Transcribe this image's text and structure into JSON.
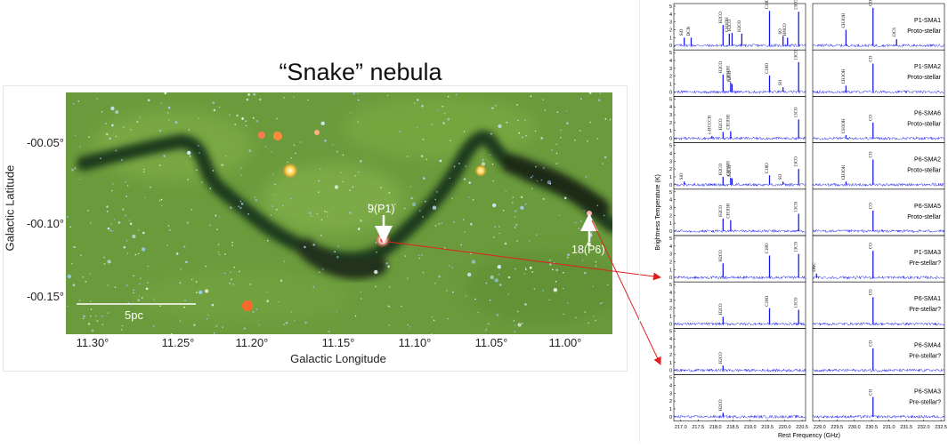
{
  "image": {
    "title": "“Snake” nebula",
    "ylabel": "Galactic Latitude",
    "xlabel": "Galactic Longitude",
    "yticks": [
      "-00.05°",
      "-00.10°",
      "-00.15°"
    ],
    "xticks": [
      "11.30°",
      "11.25°",
      "11.20°",
      "11.15°",
      "11.10°",
      "11.05°",
      "11.00°"
    ],
    "scale_bar": "5pc",
    "annotations": [
      "9(P1)",
      "18(P6)"
    ]
  },
  "chart_data": {
    "type": "line",
    "ylabel": "Brightness Temperature (K)",
    "xlabel": "Rest Frequency (GHz)",
    "x_axis_left": {
      "ticks": [
        "217.0",
        "217.5",
        "218.0",
        "218.5",
        "219.0",
        "219.5",
        "220.0",
        "220.5"
      ],
      "range": [
        216.8,
        220.6
      ]
    },
    "x_axis_right": {
      "ticks": [
        "229.0",
        "229.5",
        "230.0",
        "230.5",
        "231.0",
        "231.5",
        "232.0",
        "232.5"
      ],
      "range": [
        228.8,
        232.6
      ]
    },
    "y_range": [
      0,
      5
    ],
    "y_ticks": [
      "0",
      "1",
      "2",
      "3",
      "4",
      "5"
    ],
    "series_color": "#1a1aee",
    "panels": [
      {
        "name": "P1-SMA1",
        "class": "Proto-stellar",
        "lines": [
          {
            "side": "L",
            "x": 217.1,
            "h": 1.0,
            "label": "SiO"
          },
          {
            "side": "L",
            "x": 217.3,
            "h": 1.0,
            "label": "DCN"
          },
          {
            "side": "L",
            "x": 218.22,
            "h": 2.6,
            "label": "H2CO"
          },
          {
            "side": "L",
            "x": 218.4,
            "h": 1.5,
            "label": "CH3OH"
          },
          {
            "side": "L",
            "x": 218.48,
            "h": 1.6,
            "label": "H2CO"
          },
          {
            "side": "L",
            "x": 218.76,
            "h": 1.5,
            "label": "H2CO"
          },
          {
            "side": "L",
            "x": 219.56,
            "h": 4.4,
            "label": "C18O"
          },
          {
            "side": "L",
            "x": 219.95,
            "h": 1.2,
            "label": "SO"
          },
          {
            "side": "L",
            "x": 220.08,
            "h": 1.0,
            "label": "HNCO"
          },
          {
            "side": "L",
            "x": 220.4,
            "h": 4.3,
            "label": "13CO"
          },
          {
            "side": "R",
            "x": 229.76,
            "h": 2.0,
            "label": "CH3OH"
          },
          {
            "side": "R",
            "x": 230.54,
            "h": 4.8,
            "label": "CO"
          },
          {
            "side": "R",
            "x": 231.22,
            "h": 0.8,
            "label": "13CS"
          }
        ]
      },
      {
        "name": "P1-SMA2",
        "class": "Proto-stellar",
        "lines": [
          {
            "side": "L",
            "x": 218.22,
            "h": 2.2,
            "label": "H2CO"
          },
          {
            "side": "L",
            "x": 218.44,
            "h": 1.2,
            "label": "CH3OH"
          },
          {
            "side": "L",
            "x": 218.48,
            "h": 1.0,
            "label": "H2CO"
          },
          {
            "side": "L",
            "x": 219.56,
            "h": 2.1,
            "label": "C18O"
          },
          {
            "side": "L",
            "x": 219.95,
            "h": 0.6,
            "label": "SO"
          },
          {
            "side": "L",
            "x": 220.4,
            "h": 3.8,
            "label": "13CO"
          },
          {
            "side": "R",
            "x": 229.76,
            "h": 0.8,
            "label": "CH3OH"
          },
          {
            "side": "R",
            "x": 230.54,
            "h": 3.6,
            "label": "CO"
          }
        ]
      },
      {
        "name": "P6-SMA6",
        "class": "Proto-stellar",
        "lines": [
          {
            "side": "L",
            "x": 217.9,
            "h": 0.3,
            "label": "c-HCCCH"
          },
          {
            "side": "L",
            "x": 218.22,
            "h": 0.8,
            "label": "H2CO"
          },
          {
            "side": "L",
            "x": 218.44,
            "h": 0.9,
            "label": "CH3OH"
          },
          {
            "side": "L",
            "x": 220.4,
            "h": 2.4,
            "label": "13CO"
          },
          {
            "side": "R",
            "x": 229.76,
            "h": 0.4,
            "label": "CH3OH"
          },
          {
            "side": "R",
            "x": 230.54,
            "h": 2.0,
            "label": "CO"
          }
        ]
      },
      {
        "name": "P6-SMA2",
        "class": "Proto-stellar",
        "lines": [
          {
            "side": "L",
            "x": 217.1,
            "h": 0.4,
            "label": "SiO"
          },
          {
            "side": "L",
            "x": 218.22,
            "h": 1.0,
            "label": "H2CO"
          },
          {
            "side": "L",
            "x": 218.44,
            "h": 0.9,
            "label": "CH3OH"
          },
          {
            "side": "L",
            "x": 218.48,
            "h": 0.8,
            "label": "H2CO"
          },
          {
            "side": "L",
            "x": 219.56,
            "h": 1.2,
            "label": "C18O"
          },
          {
            "side": "L",
            "x": 219.95,
            "h": 0.4,
            "label": "SO"
          },
          {
            "side": "L",
            "x": 220.4,
            "h": 2.0,
            "label": "13CO"
          },
          {
            "side": "R",
            "x": 229.76,
            "h": 0.4,
            "label": "CH3OH"
          },
          {
            "side": "R",
            "x": 230.54,
            "h": 3.2,
            "label": "CO"
          }
        ]
      },
      {
        "name": "P6-SMA5",
        "class": "Proto-stellar",
        "lines": [
          {
            "side": "L",
            "x": 218.22,
            "h": 1.6,
            "label": "H2CO"
          },
          {
            "side": "L",
            "x": 218.44,
            "h": 1.4,
            "label": "CH3OH"
          },
          {
            "side": "L",
            "x": 220.4,
            "h": 2.2,
            "label": "13CO"
          },
          {
            "side": "R",
            "x": 230.54,
            "h": 2.6,
            "label": "CO"
          }
        ]
      },
      {
        "name": "P1-SMA3",
        "class": "Pre-stellar?",
        "lines": [
          {
            "side": "L",
            "x": 218.22,
            "h": 1.8,
            "label": "H2CO"
          },
          {
            "side": "L",
            "x": 219.56,
            "h": 2.8,
            "label": "C18O"
          },
          {
            "side": "L",
            "x": 220.4,
            "h": 3.0,
            "label": "13CO"
          },
          {
            "side": "R",
            "x": 228.91,
            "h": 0.5,
            "label": "DNC"
          },
          {
            "side": "R",
            "x": 230.54,
            "h": 3.4,
            "label": "CO"
          }
        ]
      },
      {
        "name": "P6-SMA1",
        "class": "Pre-stellar?",
        "lines": [
          {
            "side": "L",
            "x": 218.22,
            "h": 0.9,
            "label": "H2CO"
          },
          {
            "side": "L",
            "x": 219.56,
            "h": 2.0,
            "label": "C18O"
          },
          {
            "side": "L",
            "x": 220.4,
            "h": 1.8,
            "label": "13CO"
          },
          {
            "side": "R",
            "x": 230.54,
            "h": 3.4,
            "label": "CO"
          }
        ]
      },
      {
        "name": "P6-SMA4",
        "class": "Pre-stellar?",
        "lines": [
          {
            "side": "L",
            "x": 218.22,
            "h": 0.6,
            "label": "H2CO"
          },
          {
            "side": "R",
            "x": 230.54,
            "h": 2.8,
            "label": "CO"
          }
        ]
      },
      {
        "name": "P6-SMA3",
        "class": "Pre-stellar?",
        "lines": [
          {
            "side": "L",
            "x": 218.22,
            "h": 0.5,
            "label": "H2CO"
          },
          {
            "side": "R",
            "x": 230.54,
            "h": 2.5,
            "label": "CO"
          }
        ]
      }
    ]
  }
}
